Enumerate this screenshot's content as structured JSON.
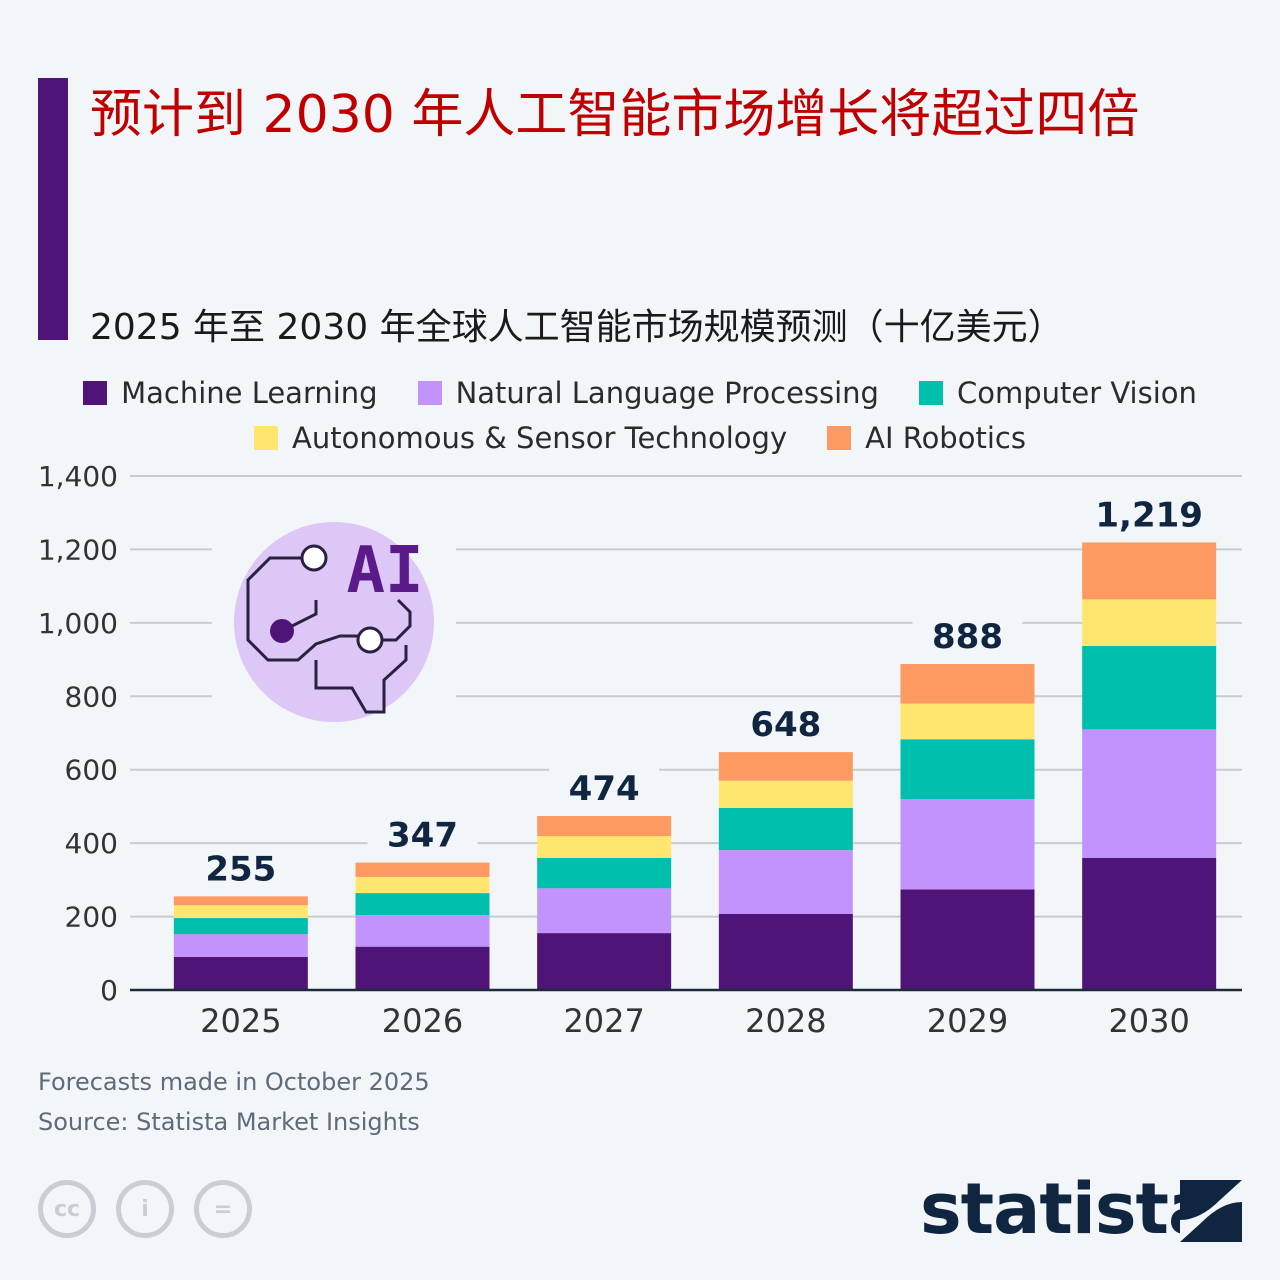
{
  "title": "预计到 2030 年人工智能市场增长将超过四倍",
  "subtitle": "2025 年至 2030 年全球人工智能市场规模预测（十亿美元）",
  "footer": {
    "note": "Forecasts made in October 2025",
    "source": "Source: Statista Market Insights"
  },
  "brand": "statista",
  "icon_text": "AI",
  "colors": {
    "accent": "#4f1478",
    "title": "#c00000"
  },
  "chart_data": {
    "type": "bar",
    "stacked": true,
    "categories": [
      "2025",
      "2026",
      "2027",
      "2028",
      "2029",
      "2030"
    ],
    "series": [
      {
        "name": "Machine Learning",
        "color": "#4f1478",
        "values": [
          90,
          118,
          155,
          207,
          274,
          360
        ]
      },
      {
        "name": "Natural Language Processing",
        "color": "#c293fc",
        "values": [
          62,
          86,
          122,
          174,
          246,
          350
        ]
      },
      {
        "name": "Computer Vision",
        "color": "#00bfad",
        "values": [
          44,
          60,
          83,
          115,
          163,
          227
        ]
      },
      {
        "name": "Autonomous & Sensor Technology",
        "color": "#ffe66e",
        "values": [
          35,
          44,
          59,
          74,
          97,
          127
        ]
      },
      {
        "name": "AI Robotics",
        "color": "#fd9a62",
        "values": [
          24,
          39,
          55,
          78,
          108,
          155
        ]
      }
    ],
    "totals": [
      "255",
      "347",
      "474",
      "648",
      "888",
      "1,219"
    ],
    "yticks": [
      "0",
      "200",
      "400",
      "600",
      "800",
      "1,000",
      "1,200",
      "1,400"
    ],
    "ylim": [
      0,
      1400
    ],
    "grid": true,
    "legend_position": "top"
  }
}
